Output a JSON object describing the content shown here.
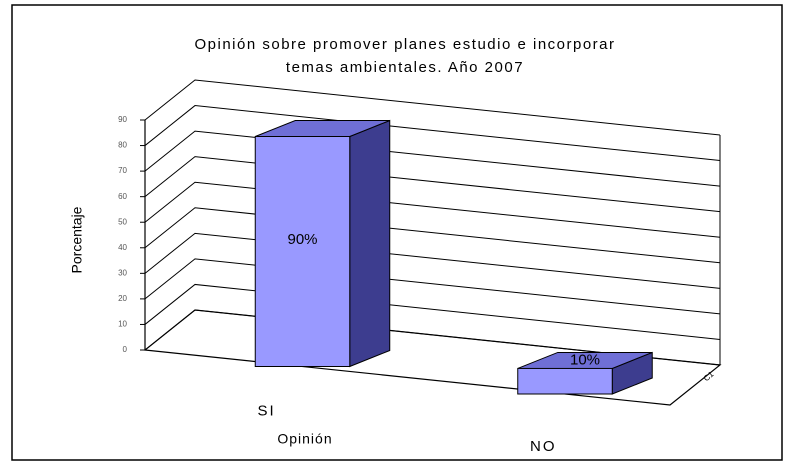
{
  "chart_data": {
    "type": "bar3d",
    "title": "Opinión sobre promover planes estudio e incorporar",
    "subtitle": "temas ambientales.  Año 2007",
    "y_label": "Porcentaje",
    "x_label": "Opinión",
    "categories": [
      "SI",
      "NO"
    ],
    "series": [
      {
        "name": "C1",
        "color": "#9999ff",
        "values": [
          90,
          10
        ],
        "value_labels": [
          "90%",
          "10%"
        ]
      }
    ],
    "ylim": [
      0,
      90
    ],
    "yticks": [
      0,
      10,
      20,
      30,
      40,
      50,
      60,
      70,
      80,
      90
    ],
    "grid": true
  }
}
